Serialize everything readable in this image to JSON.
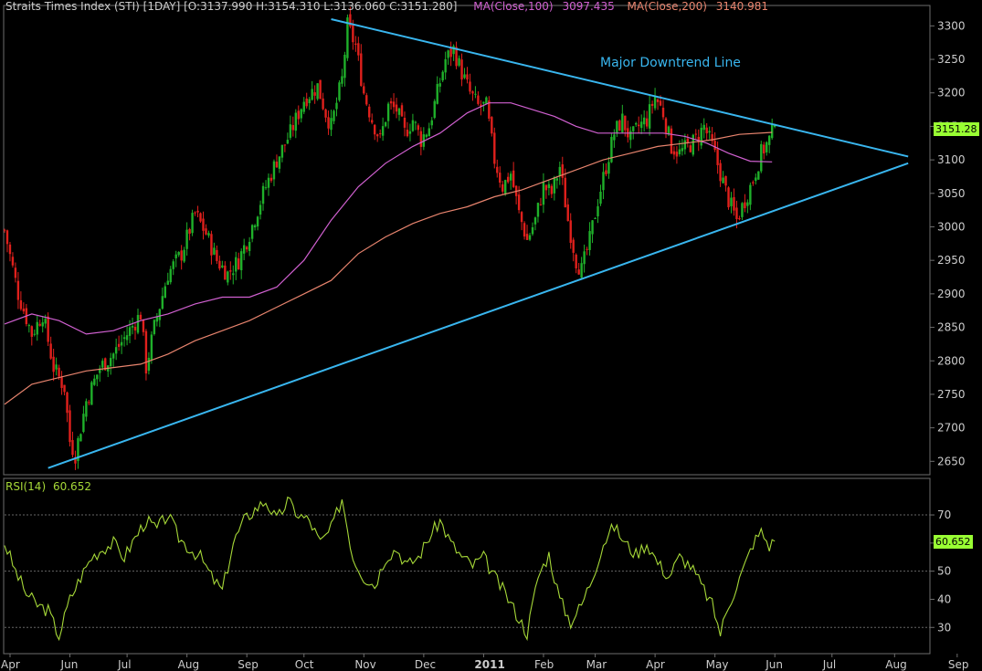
{
  "header": {
    "symbol_text": "Straits Times Index (STI) [1DAY] [O:3137.990 H:3154.310 L:3136.060 C:3151.280]",
    "ma100_label": "MA(Close,100)",
    "ma100_value": "3097.435",
    "ma200_label": "MA(Close,200)",
    "ma200_value": "3140.981"
  },
  "price_tag": "3151.28",
  "rsi_label": "RSI(14)",
  "rsi_value": "60.652",
  "rsi_tag": "60.652",
  "colors": {
    "bg": "#000000",
    "frame": "#6e6e6e",
    "up": "#1fb02a",
    "down": "#e0201c",
    "ma100": "#d060d0",
    "ma200": "#e8846e",
    "trend": "#39b6ef",
    "rsi": "#a6d838",
    "tag": "#99ff33",
    "text": "#cccccc"
  },
  "chart_data": [
    {
      "type": "candlestick",
      "title": "Straits Times Index (STI) [1DAY]",
      "ylim": [
        2630,
        3325
      ],
      "y_ticks": [
        2650,
        2700,
        2750,
        2800,
        2850,
        2900,
        2950,
        3000,
        3050,
        3100,
        3150,
        3200,
        3250,
        3300
      ],
      "x_ticks": [
        "Apr",
        "Jun",
        "Jul",
        "Aug",
        "Sep",
        "Oct",
        "Nov",
        "Dec",
        "2011",
        "Feb",
        "Mar",
        "Apr",
        "May",
        "Jun",
        "Jul",
        "Aug",
        "Sep"
      ],
      "last_close": 3151.28,
      "price_path": [
        [
          0,
          2995
        ],
        [
          5,
          2900
        ],
        [
          10,
          2840
        ],
        [
          14,
          2870
        ],
        [
          18,
          2790
        ],
        [
          22,
          2760
        ],
        [
          24,
          2680
        ],
        [
          26,
          2660
        ],
        [
          30,
          2740
        ],
        [
          35,
          2790
        ],
        [
          40,
          2810
        ],
        [
          45,
          2840
        ],
        [
          50,
          2870
        ],
        [
          52,
          2790
        ],
        [
          55,
          2850
        ],
        [
          60,
          2930
        ],
        [
          65,
          2960
        ],
        [
          70,
          3020
        ],
        [
          74,
          2990
        ],
        [
          78,
          2950
        ],
        [
          82,
          2930
        ],
        [
          86,
          2950
        ],
        [
          90,
          2990
        ],
        [
          95,
          3050
        ],
        [
          100,
          3100
        ],
        [
          105,
          3140
        ],
        [
          110,
          3190
        ],
        [
          115,
          3210
        ],
        [
          118,
          3170
        ],
        [
          120,
          3150
        ],
        [
          124,
          3220
        ],
        [
          126,
          3300
        ],
        [
          129,
          3270
        ],
        [
          132,
          3200
        ],
        [
          135,
          3160
        ],
        [
          138,
          3130
        ],
        [
          141,
          3180
        ],
        [
          144,
          3175
        ],
        [
          147,
          3140
        ],
        [
          150,
          3160
        ],
        [
          153,
          3130
        ],
        [
          156,
          3150
        ],
        [
          159,
          3200
        ],
        [
          162,
          3250
        ],
        [
          165,
          3265
        ],
        [
          168,
          3230
        ],
        [
          171,
          3200
        ],
        [
          174,
          3180
        ],
        [
          177,
          3180
        ],
        [
          180,
          3100
        ],
        [
          183,
          3060
        ],
        [
          186,
          3080
        ],
        [
          189,
          3020
        ],
        [
          192,
          2980
        ],
        [
          195,
          3010
        ],
        [
          198,
          3060
        ],
        [
          201,
          3050
        ],
        [
          204,
          3090
        ],
        [
          207,
          3010
        ],
        [
          210,
          2950
        ],
        [
          212,
          2935
        ],
        [
          215,
          2980
        ],
        [
          218,
          3040
        ],
        [
          221,
          3090
        ],
        [
          224,
          3140
        ],
        [
          227,
          3160
        ],
        [
          230,
          3130
        ],
        [
          233,
          3150
        ],
        [
          236,
          3160
        ],
        [
          239,
          3195
        ],
        [
          242,
          3170
        ],
        [
          245,
          3120
        ],
        [
          248,
          3110
        ],
        [
          251,
          3120
        ],
        [
          254,
          3130
        ],
        [
          257,
          3150
        ],
        [
          260,
          3120
        ],
        [
          263,
          3080
        ],
        [
          266,
          3040
        ],
        [
          269,
          3010
        ],
        [
          272,
          3040
        ],
        [
          275,
          3070
        ],
        [
          278,
          3110
        ],
        [
          281,
          3130
        ],
        [
          283,
          3151
        ]
      ],
      "ma100": [
        [
          0,
          2855
        ],
        [
          10,
          2870
        ],
        [
          20,
          2860
        ],
        [
          30,
          2840
        ],
        [
          40,
          2845
        ],
        [
          50,
          2860
        ],
        [
          60,
          2870
        ],
        [
          70,
          2885
        ],
        [
          80,
          2895
        ],
        [
          90,
          2895
        ],
        [
          100,
          2910
        ],
        [
          110,
          2950
        ],
        [
          120,
          3010
        ],
        [
          130,
          3060
        ],
        [
          140,
          3095
        ],
        [
          150,
          3120
        ],
        [
          160,
          3140
        ],
        [
          170,
          3170
        ],
        [
          178,
          3185
        ],
        [
          186,
          3185
        ],
        [
          194,
          3175
        ],
        [
          202,
          3165
        ],
        [
          210,
          3150
        ],
        [
          218,
          3140
        ],
        [
          226,
          3140
        ],
        [
          234,
          3140
        ],
        [
          242,
          3140
        ],
        [
          250,
          3135
        ],
        [
          258,
          3125
        ],
        [
          266,
          3110
        ],
        [
          274,
          3098
        ],
        [
          282,
          3097
        ]
      ],
      "ma200": [
        [
          0,
          2735
        ],
        [
          10,
          2765
        ],
        [
          20,
          2775
        ],
        [
          30,
          2785
        ],
        [
          40,
          2790
        ],
        [
          50,
          2795
        ],
        [
          60,
          2810
        ],
        [
          70,
          2830
        ],
        [
          80,
          2845
        ],
        [
          90,
          2860
        ],
        [
          100,
          2880
        ],
        [
          110,
          2900
        ],
        [
          120,
          2920
        ],
        [
          130,
          2960
        ],
        [
          140,
          2985
        ],
        [
          150,
          3005
        ],
        [
          160,
          3020
        ],
        [
          170,
          3030
        ],
        [
          180,
          3045
        ],
        [
          190,
          3055
        ],
        [
          200,
          3070
        ],
        [
          210,
          3085
        ],
        [
          220,
          3100
        ],
        [
          230,
          3110
        ],
        [
          240,
          3120
        ],
        [
          250,
          3125
        ],
        [
          260,
          3130
        ],
        [
          270,
          3138
        ],
        [
          282,
          3141
        ]
      ],
      "trendlines": [
        {
          "name": "Major Downtrend Line",
          "start": [
            120,
            3310
          ],
          "end": [
            332,
            3105
          ]
        },
        {
          "name": "",
          "start": [
            16,
            2640
          ],
          "end": [
            332,
            3095
          ]
        }
      ]
    },
    {
      "type": "line",
      "title": "RSI(14)",
      "ylim": [
        21,
        83
      ],
      "y_ticks": [
        30,
        40,
        50,
        60,
        70
      ],
      "guides": [
        30,
        50,
        70
      ],
      "last_value": 60.652,
      "path": [
        [
          0,
          60
        ],
        [
          4,
          50
        ],
        [
          8,
          42
        ],
        [
          12,
          38
        ],
        [
          16,
          36
        ],
        [
          20,
          27
        ],
        [
          24,
          40
        ],
        [
          28,
          48
        ],
        [
          32,
          55
        ],
        [
          36,
          58
        ],
        [
          40,
          60
        ],
        [
          44,
          55
        ],
        [
          48,
          62
        ],
        [
          52,
          68
        ],
        [
          56,
          65
        ],
        [
          60,
          70
        ],
        [
          64,
          62
        ],
        [
          68,
          58
        ],
        [
          72,
          55
        ],
        [
          76,
          48
        ],
        [
          80,
          43
        ],
        [
          84,
          60
        ],
        [
          88,
          68
        ],
        [
          92,
          72
        ],
        [
          96,
          75
        ],
        [
          100,
          68
        ],
        [
          104,
          75
        ],
        [
          108,
          70
        ],
        [
          112,
          68
        ],
        [
          116,
          60
        ],
        [
          120,
          65
        ],
        [
          124,
          76
        ],
        [
          128,
          55
        ],
        [
          132,
          48
        ],
        [
          136,
          45
        ],
        [
          140,
          55
        ],
        [
          144,
          58
        ],
        [
          148,
          52
        ],
        [
          152,
          55
        ],
        [
          156,
          62
        ],
        [
          160,
          68
        ],
        [
          164,
          60
        ],
        [
          168,
          55
        ],
        [
          172,
          52
        ],
        [
          176,
          55
        ],
        [
          180,
          48
        ],
        [
          184,
          42
        ],
        [
          188,
          35
        ],
        [
          192,
          28
        ],
        [
          196,
          48
        ],
        [
          200,
          56
        ],
        [
          204,
          40
        ],
        [
          208,
          32
        ],
        [
          212,
          38
        ],
        [
          216,
          48
        ],
        [
          220,
          60
        ],
        [
          224,
          66
        ],
        [
          228,
          60
        ],
        [
          232,
          56
        ],
        [
          236,
          60
        ],
        [
          240,
          53
        ],
        [
          244,
          48
        ],
        [
          248,
          55
        ],
        [
          252,
          52
        ],
        [
          256,
          45
        ],
        [
          260,
          38
        ],
        [
          263,
          28
        ],
        [
          266,
          38
        ],
        [
          269,
          45
        ],
        [
          272,
          52
        ],
        [
          275,
          60
        ],
        [
          278,
          64
        ],
        [
          281,
          59
        ],
        [
          283,
          60.652
        ]
      ]
    }
  ]
}
